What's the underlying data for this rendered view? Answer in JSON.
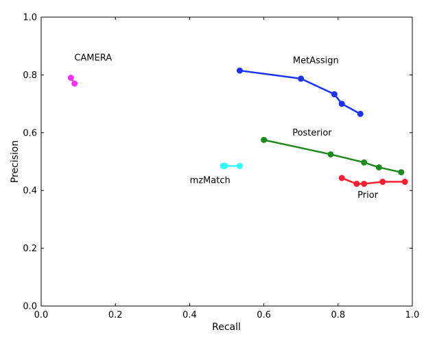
{
  "chart_data": {
    "type": "line",
    "title": "",
    "xlabel": "Recall",
    "ylabel": "Precision",
    "xlim": [
      0.0,
      1.0
    ],
    "ylim": [
      0.0,
      1.0
    ],
    "xticks": [
      "0.0",
      "0.2",
      "0.4",
      "0.6",
      "0.8",
      "1.0"
    ],
    "yticks": [
      "0.0",
      "0.2",
      "0.4",
      "0.6",
      "0.8",
      "1.0"
    ],
    "grid": false,
    "legend": "none (series labeled inline)",
    "series": [
      {
        "name": "CAMERA",
        "color": "#ff33ff",
        "x": [
          0.08,
          0.09
        ],
        "y": [
          0.79,
          0.77
        ],
        "label_at": [
          0.14,
          0.85
        ]
      },
      {
        "name": "MetAssign",
        "color": "#1a33ff",
        "x": [
          0.535,
          0.7,
          0.79,
          0.81,
          0.86
        ],
        "y": [
          0.815,
          0.787,
          0.733,
          0.7,
          0.665
        ],
        "label_at": [
          0.74,
          0.84
        ]
      },
      {
        "name": "Posterior",
        "color": "#1e8a1e",
        "x": [
          0.6,
          0.78,
          0.87,
          0.91,
          0.97
        ],
        "y": [
          0.575,
          0.525,
          0.497,
          0.48,
          0.463
        ],
        "label_at": [
          0.73,
          0.59
        ]
      },
      {
        "name": "mzMatch",
        "color": "#33ffff",
        "x": [
          0.49,
          0.495,
          0.535
        ],
        "y": [
          0.485,
          0.485,
          0.485
        ],
        "label_at": [
          0.455,
          0.425
        ]
      },
      {
        "name": "Prior",
        "color": "#ff1f2f",
        "x": [
          0.81,
          0.85,
          0.87,
          0.92,
          0.98
        ],
        "y": [
          0.443,
          0.423,
          0.423,
          0.43,
          0.43
        ],
        "label_at": [
          0.88,
          0.375
        ]
      }
    ]
  }
}
